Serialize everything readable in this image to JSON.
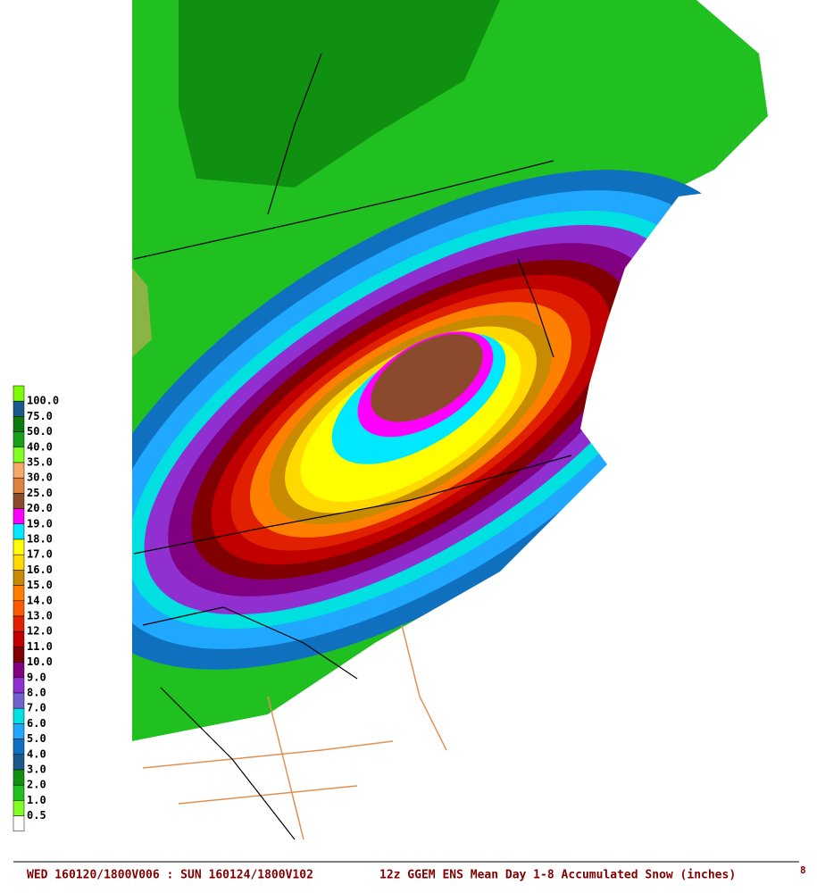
{
  "legend": [
    {
      "label": "100.0",
      "color": "#7cfc00"
    },
    {
      "label": "75.0",
      "color": "#1a5a8a"
    },
    {
      "label": "50.0",
      "color": "#0a7a0a"
    },
    {
      "label": "40.0",
      "color": "#18a018"
    },
    {
      "label": "35.0",
      "color": "#80ff20"
    },
    {
      "label": "30.0",
      "color": "#f5a868"
    },
    {
      "label": "25.0",
      "color": "#e08040"
    },
    {
      "label": "20.0",
      "color": "#8b4a2b"
    },
    {
      "label": "19.0",
      "color": "#ff00ff"
    },
    {
      "label": "18.0",
      "color": "#00e8ff"
    },
    {
      "label": "17.0",
      "color": "#ffff00"
    },
    {
      "label": "16.0",
      "color": "#ffd800"
    },
    {
      "label": "15.0",
      "color": "#c88a00"
    },
    {
      "label": "14.0",
      "color": "#ff8000"
    },
    {
      "label": "13.0",
      "color": "#ff5a00"
    },
    {
      "label": "12.0",
      "color": "#e02000"
    },
    {
      "label": "11.0",
      "color": "#c00000"
    },
    {
      "label": "10.0",
      "color": "#800000"
    },
    {
      "label": "9.0",
      "color": "#800080"
    },
    {
      "label": "8.0",
      "color": "#9030d0"
    },
    {
      "label": "7.0",
      "color": "#7060d0"
    },
    {
      "label": "6.0",
      "color": "#00e0e0"
    },
    {
      "label": "5.0",
      "color": "#20a8ff"
    },
    {
      "label": "4.0",
      "color": "#1070c0"
    },
    {
      "label": "3.0",
      "color": "#1a5a8a"
    },
    {
      "label": "2.0",
      "color": "#109010"
    },
    {
      "label": "1.0",
      "color": "#20c020"
    },
    {
      "label": "0.5",
      "color": "#80ff20"
    }
  ],
  "footer": {
    "valid": "WED 160120/1800V006 : SUN 160124/1800V102",
    "title": "12z GGEM ENS Mean Day 1-8 Accumulated Snow (inches)",
    "corner": "8"
  }
}
